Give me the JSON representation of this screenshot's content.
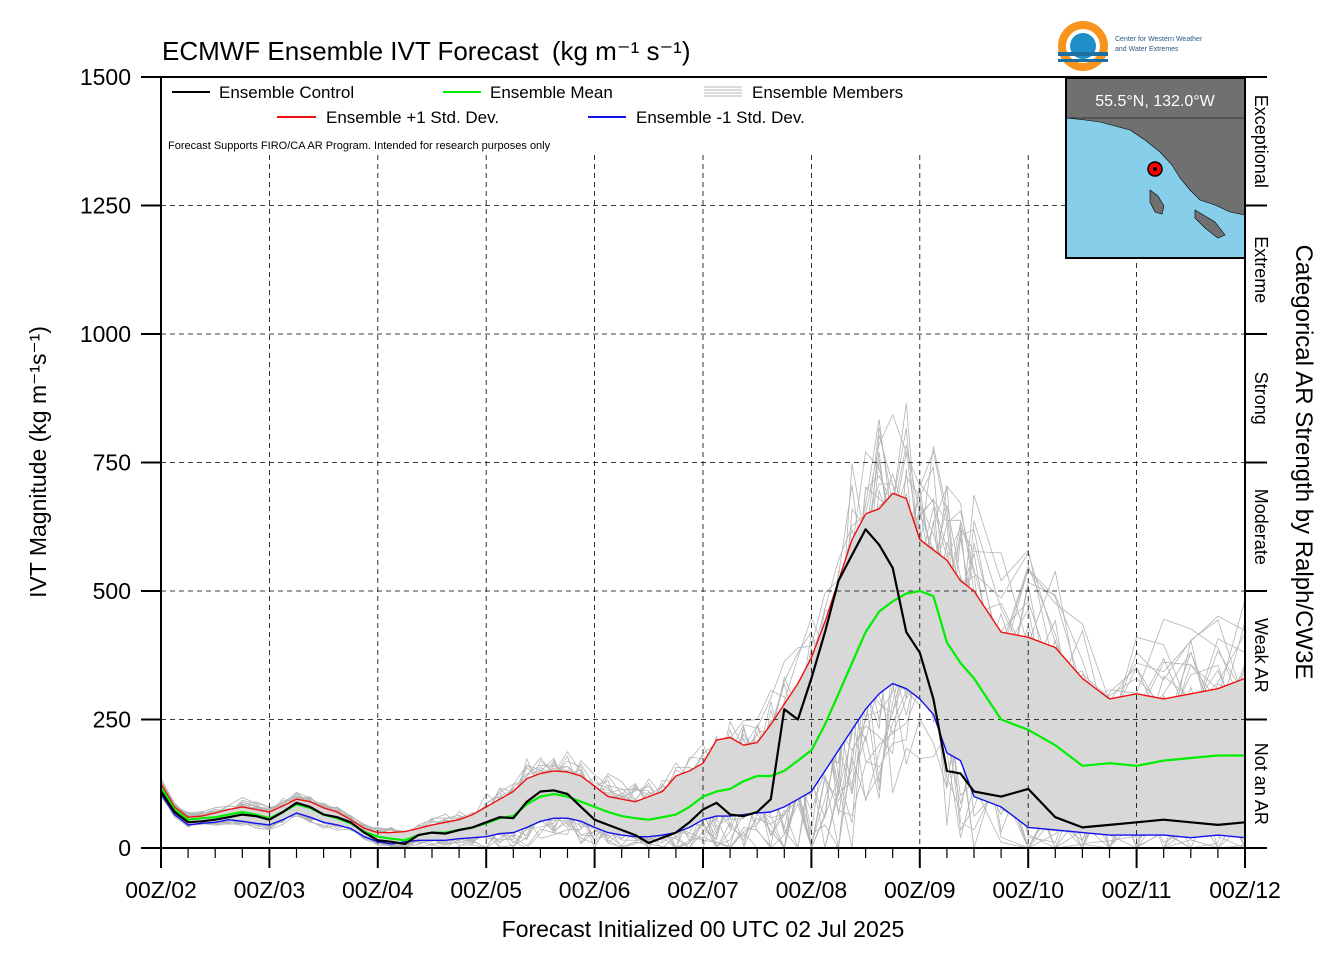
{
  "chart_data": {
    "type": "line",
    "title": "ECMWF Ensemble IVT Forecast",
    "title_units": "(kg m⁻¹ s⁻¹)",
    "xlabel": "Forecast Initialized 00 UTC 02 Jul 2025",
    "ylabel": "IVT Magnitude (kg m⁻¹s⁻¹)",
    "right_label": "Categorical AR Strength by Ralph/CW3E",
    "note": "Forecast Supports FIRO/CA AR Program. Intended for research purposes only",
    "ylim": [
      0,
      1500
    ],
    "yticks": [
      0,
      250,
      500,
      750,
      1000,
      1250,
      1500
    ],
    "xlim_hours": [
      0,
      240
    ],
    "xticks": [
      "00Z/02",
      "00Z/03",
      "00Z/04",
      "00Z/05",
      "00Z/06",
      "00Z/07",
      "00Z/08",
      "00Z/09",
      "00Z/10",
      "00Z/11",
      "00Z/12"
    ],
    "grid": true,
    "categories_ar": [
      {
        "label": "Not an AR",
        "range": [
          0,
          250
        ]
      },
      {
        "label": "Weak AR",
        "range": [
          250,
          500
        ]
      },
      {
        "label": "Moderate",
        "range": [
          500,
          750
        ]
      },
      {
        "label": "Strong",
        "range": [
          750,
          1000
        ]
      },
      {
        "label": "Extreme",
        "range": [
          1000,
          1250
        ]
      },
      {
        "label": "Exceptional",
        "range": [
          1250,
          1500
        ]
      }
    ],
    "legend": {
      "placement": "top-left",
      "entries": [
        {
          "label": "Ensemble Control",
          "color": "#000000"
        },
        {
          "label": "Ensemble Mean",
          "color": "#00ee00"
        },
        {
          "label": "Ensemble Members",
          "color": "#b4b4b4"
        },
        {
          "label": "Ensemble +1 Std. Dev.",
          "color": "#ee1111"
        },
        {
          "label": "Ensemble -1 Std. Dev.",
          "color": "#1111ee"
        }
      ]
    },
    "series": [
      {
        "name": "Ensemble Control",
        "color": "#000000",
        "x": [
          0,
          3,
          6,
          9,
          12,
          15,
          18,
          21,
          24,
          27,
          30,
          33,
          36,
          39,
          42,
          45,
          48,
          51,
          54,
          57,
          60,
          63,
          66,
          69,
          72,
          75,
          78,
          81,
          84,
          87,
          90,
          93,
          96,
          99,
          102,
          105,
          108,
          111,
          114,
          117,
          120,
          123,
          126,
          129,
          132,
          135,
          138,
          141,
          144,
          147,
          150,
          153,
          156,
          159,
          162,
          165,
          168,
          171,
          174,
          177,
          180,
          186,
          192,
          198,
          204,
          210,
          216,
          222,
          228,
          234,
          240
        ],
        "y": [
          110,
          70,
          50,
          52,
          55,
          60,
          65,
          62,
          55,
          70,
          88,
          80,
          65,
          60,
          50,
          30,
          15,
          12,
          8,
          25,
          30,
          28,
          35,
          40,
          50,
          60,
          58,
          90,
          110,
          112,
          105,
          80,
          55,
          45,
          35,
          25,
          10,
          20,
          30,
          50,
          75,
          88,
          65,
          62,
          70,
          95,
          270,
          250,
          330,
          420,
          520,
          570,
          620,
          590,
          545,
          420,
          380,
          290,
          150,
          145,
          110,
          100,
          115,
          60,
          40,
          45,
          50,
          55,
          50,
          45,
          50
        ]
      },
      {
        "name": "Ensemble Mean",
        "color": "#00ee00",
        "x": [
          0,
          3,
          6,
          9,
          12,
          15,
          18,
          21,
          24,
          27,
          30,
          33,
          36,
          39,
          42,
          45,
          48,
          51,
          54,
          57,
          60,
          63,
          66,
          69,
          72,
          75,
          78,
          81,
          84,
          87,
          90,
          93,
          96,
          99,
          102,
          105,
          108,
          111,
          114,
          117,
          120,
          123,
          126,
          129,
          132,
          135,
          138,
          141,
          144,
          147,
          150,
          153,
          156,
          159,
          162,
          165,
          168,
          171,
          174,
          177,
          180,
          186,
          192,
          198,
          204,
          210,
          216,
          222,
          228,
          234,
          240
        ],
        "y": [
          118,
          75,
          55,
          58,
          60,
          65,
          70,
          65,
          58,
          70,
          85,
          78,
          65,
          58,
          48,
          32,
          22,
          18,
          15,
          25,
          30,
          30,
          35,
          40,
          48,
          58,
          62,
          85,
          100,
          105,
          100,
          90,
          80,
          70,
          62,
          58,
          55,
          60,
          65,
          80,
          100,
          110,
          115,
          130,
          140,
          140,
          150,
          170,
          190,
          240,
          300,
          360,
          420,
          460,
          480,
          495,
          500,
          490,
          400,
          360,
          330,
          250,
          230,
          200,
          160,
          165,
          160,
          170,
          175,
          180,
          180
        ]
      },
      {
        "name": "Ensemble +1 Std. Dev.",
        "color": "#ee1111",
        "x": [
          0,
          3,
          6,
          9,
          12,
          15,
          18,
          21,
          24,
          27,
          30,
          33,
          36,
          39,
          42,
          45,
          48,
          51,
          54,
          57,
          60,
          63,
          66,
          69,
          72,
          75,
          78,
          81,
          84,
          87,
          90,
          93,
          96,
          99,
          102,
          105,
          108,
          111,
          114,
          117,
          120,
          123,
          126,
          129,
          132,
          135,
          138,
          141,
          144,
          147,
          150,
          153,
          156,
          159,
          162,
          165,
          168,
          171,
          174,
          177,
          180,
          186,
          192,
          198,
          204,
          210,
          216,
          222,
          228,
          234,
          240
        ],
        "y": [
          125,
          80,
          60,
          62,
          68,
          75,
          80,
          75,
          70,
          82,
          95,
          90,
          78,
          70,
          55,
          38,
          30,
          30,
          32,
          38,
          45,
          50,
          55,
          65,
          80,
          95,
          110,
          135,
          145,
          150,
          148,
          140,
          120,
          100,
          95,
          90,
          100,
          110,
          140,
          150,
          165,
          210,
          215,
          200,
          205,
          240,
          280,
          320,
          370,
          440,
          520,
          600,
          650,
          660,
          690,
          680,
          600,
          580,
          560,
          520,
          500,
          420,
          410,
          390,
          330,
          290,
          300,
          290,
          300,
          310,
          330
        ]
      },
      {
        "name": "Ensemble -1 Std. Dev.",
        "color": "#1111ee",
        "x": [
          0,
          3,
          6,
          9,
          12,
          15,
          18,
          21,
          24,
          27,
          30,
          33,
          36,
          39,
          42,
          45,
          48,
          51,
          54,
          57,
          60,
          63,
          66,
          69,
          72,
          75,
          78,
          81,
          84,
          87,
          90,
          93,
          96,
          99,
          102,
          105,
          108,
          111,
          114,
          117,
          120,
          123,
          126,
          129,
          132,
          135,
          138,
          141,
          144,
          147,
          150,
          153,
          156,
          159,
          162,
          165,
          168,
          171,
          174,
          177,
          180,
          186,
          192,
          198,
          204,
          210,
          216,
          222,
          228,
          234,
          240
        ],
        "y": [
          105,
          65,
          45,
          48,
          50,
          55,
          52,
          48,
          45,
          55,
          68,
          60,
          50,
          45,
          38,
          22,
          12,
          8,
          12,
          15,
          15,
          15,
          18,
          20,
          22,
          28,
          30,
          40,
          52,
          58,
          58,
          52,
          40,
          30,
          25,
          22,
          22,
          25,
          30,
          40,
          55,
          62,
          62,
          65,
          68,
          70,
          80,
          95,
          110,
          150,
          190,
          230,
          270,
          300,
          320,
          310,
          290,
          260,
          185,
          170,
          100,
          80,
          40,
          35,
          30,
          25,
          25,
          25,
          20,
          25,
          20
        ]
      }
    ],
    "members_note": "gray thin lines, 50 members",
    "inset_map": {
      "label": "55.5°N, 132.0°W",
      "land_color": "#707070",
      "water_color": "#87ceeb",
      "marker_color": "#ff0000"
    }
  },
  "logo": {
    "line1": "Center for Western Weather",
    "line2": "and Water Extremes"
  },
  "colors": {
    "band_fill": "#d8d8d8",
    "member": "#b4b4b4",
    "grid": "#000000"
  }
}
